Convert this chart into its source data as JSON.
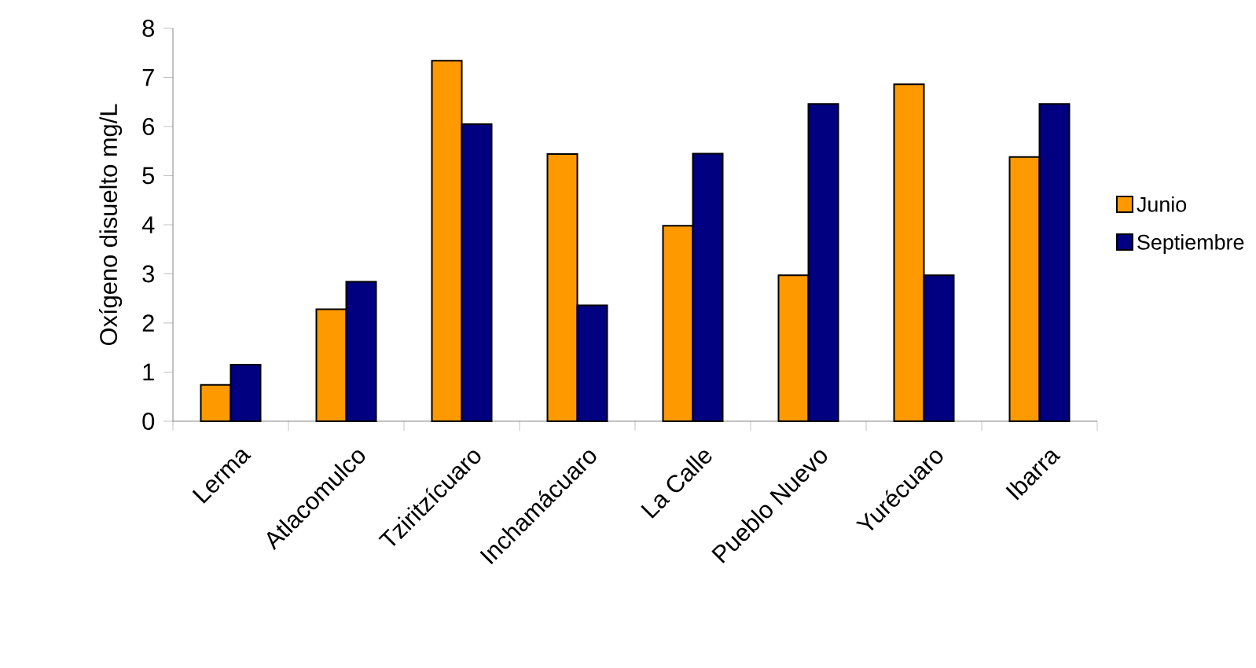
{
  "chart_data": {
    "type": "bar",
    "ylabel": "Oxígeno disuelto mg/L",
    "categories": [
      "Lerma",
      "Atlacomulco",
      "Tziritzícuaro",
      "Inchamácuaro",
      "La Calle",
      "Pueblo Nuevo",
      "Yurécuaro",
      "Ibarra"
    ],
    "series": [
      {
        "name": "Junio",
        "color": "#ff9900",
        "values": [
          0.74,
          2.28,
          7.34,
          5.44,
          3.98,
          2.97,
          6.86,
          5.38
        ]
      },
      {
        "name": "Septiembre",
        "color": "#000080",
        "values": [
          1.15,
          2.84,
          6.05,
          2.36,
          5.45,
          6.46,
          2.97,
          6.46
        ]
      }
    ],
    "ylim": [
      0,
      8
    ],
    "yticks": [
      0,
      1,
      2,
      3,
      4,
      5,
      6,
      7,
      8
    ],
    "legend": "right",
    "grid": false
  }
}
